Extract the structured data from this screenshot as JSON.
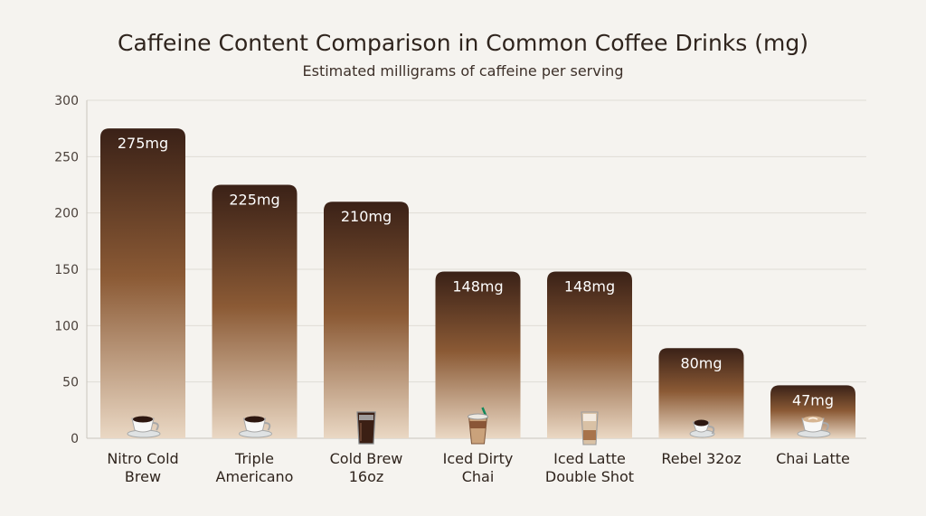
{
  "chart_data": {
    "type": "bar",
    "title": "Caffeine Content Comparison in Common Coffee Drinks (mg)",
    "subtitle": "Estimated milligrams of caffeine per serving",
    "xlabel": "",
    "ylabel": "",
    "ylim": [
      0,
      300
    ],
    "yticks": [
      0,
      50,
      100,
      150,
      200,
      250,
      300
    ],
    "grid": true,
    "legend": "none",
    "categories": [
      [
        "Nitro Cold",
        "Brew"
      ],
      [
        "Triple",
        "Americano"
      ],
      [
        "Cold Brew",
        "16oz"
      ],
      [
        "Iced Dirty",
        "Chai"
      ],
      [
        "Iced Latte",
        "Double Shot"
      ],
      [
        "Rebel 32oz"
      ],
      [
        "Chai Latte"
      ]
    ],
    "values": [
      275,
      225,
      210,
      148,
      148,
      80,
      47
    ],
    "value_labels": [
      "275mg",
      "225mg",
      "210mg",
      "148mg",
      "148mg",
      "80mg",
      "47mg"
    ],
    "icons": [
      "coffee-cup-icon",
      "americano-cup-icon",
      "iced-cold-brew-glass-icon",
      "iced-chai-cup-icon",
      "iced-latte-glass-icon",
      "espresso-cup-icon",
      "latte-cup-icon"
    ],
    "colors": {
      "bar_top": "#3a2117",
      "bar_mid": "#8b5a35",
      "bar_bottom": "#e9d5bf",
      "grid": "#dfdcd6",
      "axis": "#c9c5be",
      "text": "#2f241d"
    }
  }
}
